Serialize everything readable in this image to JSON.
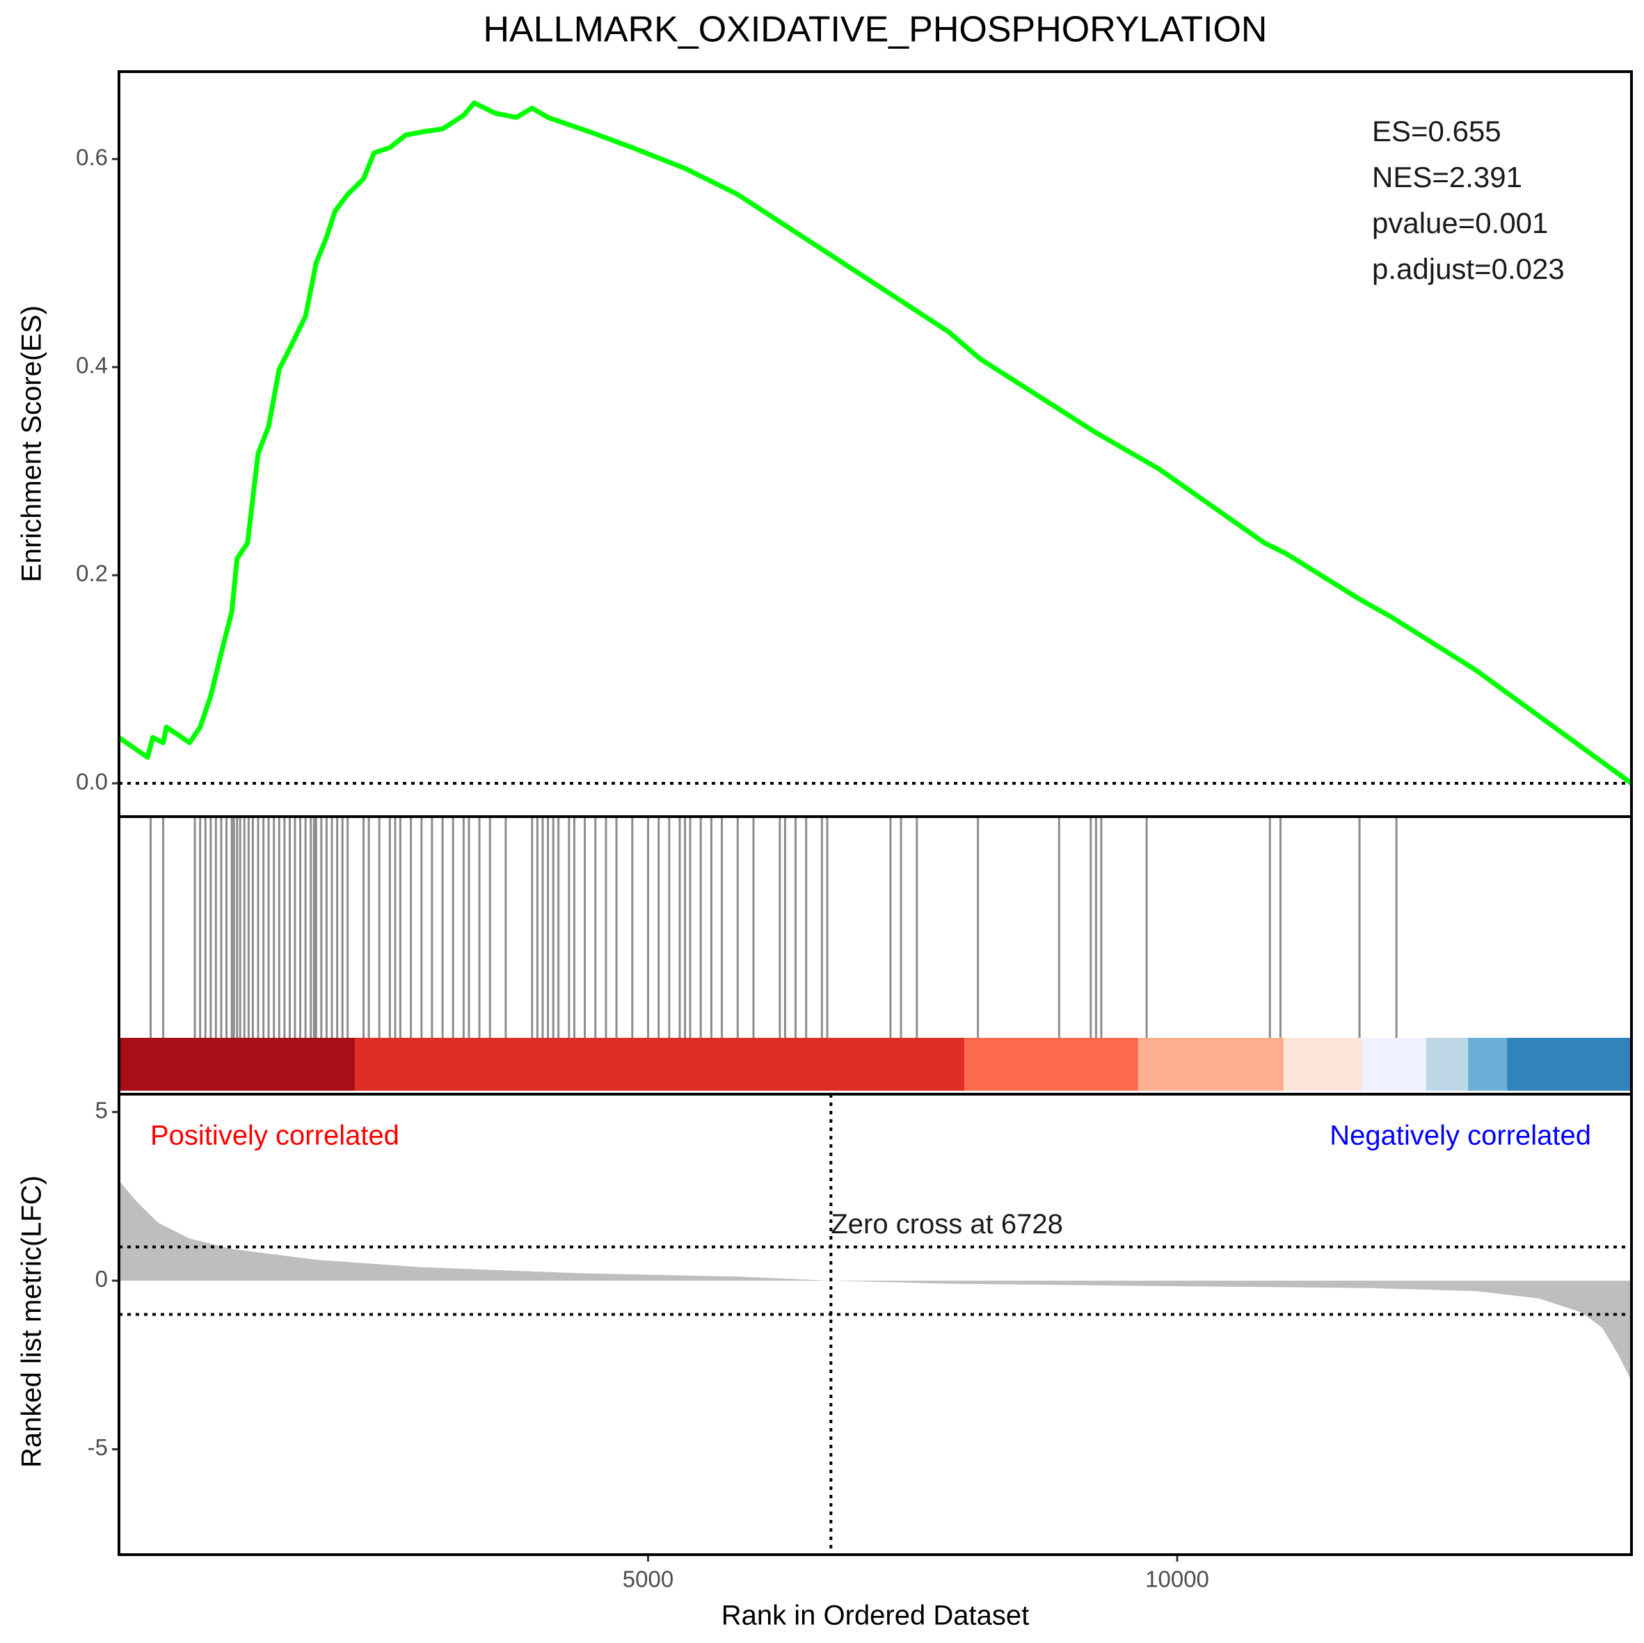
{
  "chart_data": [
    {
      "type": "line",
      "title": "HALLMARK_OXIDATIVE_PHOSPHORYLATION",
      "y_label": "Enrichment Score(ES)",
      "annotations": [
        "ES=0.655",
        "NES=2.391",
        "pvalue=0.001",
        "p.adjust=0.023"
      ],
      "color": "#00ff00",
      "x": [
        0,
        270,
        319,
        418,
        448,
        568,
        667,
        767,
        867,
        966,
        1066,
        1116,
        1215,
        1315,
        1414,
        1514,
        1614,
        1763,
        1863,
        1962,
        2042,
        2161,
        2311,
        2411,
        2560,
        2709,
        2859,
        3058,
        3257,
        3357,
        3556,
        3755,
        3904,
        4054,
        4453,
        4851,
        5349,
        5847,
        6843,
        7839,
        8137,
        9233,
        9830,
        10826,
        11026,
        11723,
        12022,
        12819,
        14293
      ],
      "values": [
        0.044,
        0.025,
        0.044,
        0.039,
        0.054,
        0.046,
        0.039,
        0.054,
        0.084,
        0.125,
        0.165,
        0.216,
        0.231,
        0.317,
        0.343,
        0.398,
        0.418,
        0.449,
        0.5,
        0.525,
        0.55,
        0.566,
        0.581,
        0.606,
        0.611,
        0.623,
        0.626,
        0.629,
        0.642,
        0.654,
        0.644,
        0.64,
        0.649,
        0.64,
        0.626,
        0.611,
        0.591,
        0.566,
        0.5,
        0.434,
        0.408,
        0.337,
        0.302,
        0.231,
        0.221,
        0.177,
        0.16,
        0.109,
        0.0
      ],
      "xlim": [
        0,
        14293
      ],
      "ylim": [
        -0.032,
        0.684
      ],
      "yticks": [
        {
          "value": 0,
          "label": "0.0"
        },
        0.2,
        0.4,
        0.6
      ],
      "hlines": [
        0
      ]
    },
    {
      "type": "rug",
      "hits": [
        299,
        418,
        717,
        767,
        817,
        867,
        916,
        966,
        1016,
        1066,
        1086,
        1116,
        1145,
        1185,
        1225,
        1265,
        1315,
        1365,
        1414,
        1464,
        1514,
        1564,
        1614,
        1663,
        1713,
        1763,
        1813,
        1843,
        1863,
        1912,
        1962,
        2012,
        2062,
        2112,
        2161,
        2311,
        2361,
        2460,
        2560,
        2610,
        2659,
        2759,
        2859,
        2958,
        3058,
        3157,
        3257,
        3307,
        3406,
        3506,
        3655,
        3904,
        3954,
        4004,
        4054,
        4104,
        4153,
        4253,
        4303,
        4402,
        4502,
        4602,
        4701,
        4851,
        5000,
        5100,
        5200,
        5299,
        5349,
        5398,
        5498,
        5598,
        5697,
        5847,
        5996,
        6245,
        6295,
        6394,
        6494,
        6643,
        6693,
        7291,
        7390,
        7540,
        8117,
        8884,
        9183,
        9233,
        9283,
        9711,
        10876,
        10976,
        11723,
        12072
      ],
      "bar_edges": [
        0,
        2231,
        7988,
        9631,
        11006,
        11753,
        12351,
        12749,
        13117,
        14293
      ],
      "bar_colors": [
        "#a50f15",
        "#de2d26",
        "#fb6a4a",
        "#fcae91",
        "#fee5d9",
        "#eff3ff",
        "#bdd7e7",
        "#6baed6",
        "#3182bd"
      ],
      "xlim": [
        0,
        14293
      ]
    },
    {
      "type": "area",
      "y_label": "Ranked list metric(LFC)",
      "x_label": "Rank in Ordered Dataset",
      "positive_label": "Positively correlated",
      "negative_label": "Negatively correlated",
      "label_colors": [
        "#ff0000",
        "#0000ff"
      ],
      "zero_cross": 6728,
      "zero_cross_label": "Zero cross at 6728",
      "color": "#bebebe",
      "x": [
        0,
        169,
        369,
        667,
        1066,
        1863,
        2859,
        4353,
        5847,
        6728,
        7843,
        9834,
        11826,
        12822,
        13420,
        13818,
        14017,
        14167,
        14293
      ],
      "values": [
        2.97,
        2.34,
        1.72,
        1.25,
        0.94,
        0.62,
        0.4,
        0.22,
        0.12,
        0,
        -0.09,
        -0.16,
        -0.22,
        -0.31,
        -0.53,
        -0.94,
        -1.4,
        -2.19,
        -2.97
      ],
      "xlim": [
        0,
        14293
      ],
      "xticks": [
        5000,
        10000
      ],
      "ylim": [
        -8.125,
        5.53
      ],
      "yticks": [
        5,
        0,
        -5
      ],
      "hlines": [
        1,
        -1
      ]
    }
  ]
}
